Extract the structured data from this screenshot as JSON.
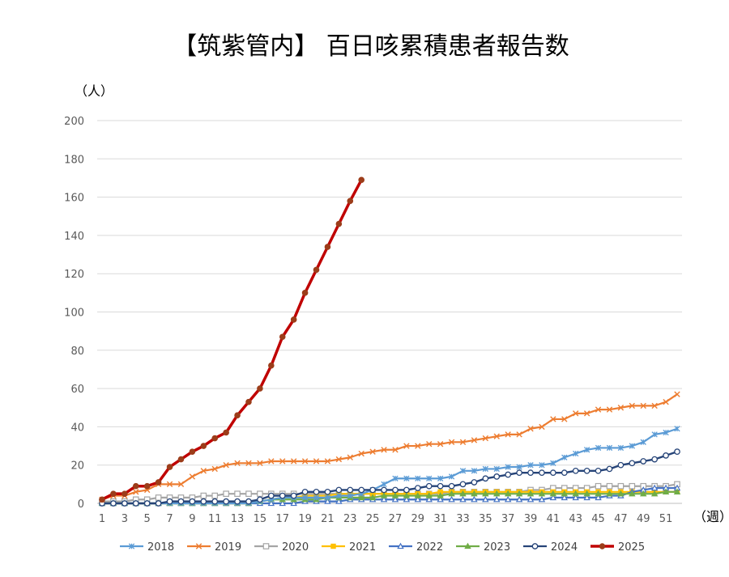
{
  "chart_data": {
    "type": "line",
    "title": "【筑紫管内】 百日咳累積患者報告数",
    "ylabel": "（人）",
    "xlabel": "（週）",
    "ylim": [
      0,
      200
    ],
    "yticks": [
      0,
      20,
      40,
      60,
      80,
      100,
      120,
      140,
      160,
      180,
      200
    ],
    "xlim": [
      1,
      52
    ],
    "xticks": [
      1,
      3,
      5,
      7,
      9,
      11,
      13,
      15,
      17,
      19,
      21,
      23,
      25,
      27,
      29,
      31,
      33,
      35,
      37,
      39,
      41,
      43,
      45,
      47,
      49,
      51
    ],
    "grid": "horizontal",
    "legend": "bottom",
    "series": [
      {
        "name": "2018",
        "color": "#5b9bd5",
        "marker": "star",
        "values": [
          0,
          0,
          0,
          0,
          0,
          0,
          0,
          0,
          0,
          0,
          0,
          0,
          0,
          0,
          1,
          2,
          3,
          3,
          3,
          3,
          3,
          4,
          4,
          5,
          7,
          10,
          13,
          13,
          13,
          13,
          13,
          14,
          17,
          17,
          18,
          18,
          19,
          19,
          20,
          20,
          21,
          24,
          26,
          28,
          29,
          29,
          29,
          30,
          32,
          36,
          37,
          39
        ]
      },
      {
        "name": "2019",
        "color": "#ed7d31",
        "marker": "x",
        "values": [
          2,
          4,
          4,
          6,
          7,
          10,
          10,
          10,
          14,
          17,
          18,
          20,
          21,
          21,
          21,
          22,
          22,
          22,
          22,
          22,
          22,
          23,
          24,
          26,
          27,
          28,
          28,
          30,
          30,
          31,
          31,
          32,
          32,
          33,
          34,
          35,
          36,
          36,
          39,
          40,
          44,
          44,
          47,
          47,
          49,
          49,
          50,
          51,
          51,
          51,
          53,
          57
        ]
      },
      {
        "name": "2020",
        "color": "#a5a5a5",
        "marker": "square-open",
        "values": [
          1,
          1,
          1,
          2,
          2,
          3,
          3,
          3,
          3,
          4,
          4,
          5,
          5,
          5,
          5,
          5,
          5,
          5,
          5,
          5,
          5,
          5,
          5,
          5,
          5,
          5,
          5,
          5,
          5,
          5,
          5,
          6,
          6,
          6,
          6,
          6,
          6,
          6,
          7,
          7,
          8,
          8,
          8,
          8,
          9,
          9,
          9,
          9,
          9,
          9,
          9,
          10
        ]
      },
      {
        "name": "2021",
        "color": "#ffc000",
        "marker": "square",
        "values": [
          0,
          0,
          0,
          0,
          0,
          0,
          0,
          0,
          0,
          0,
          0,
          0,
          0,
          0,
          1,
          2,
          3,
          3,
          4,
          4,
          4,
          5,
          5,
          5,
          5,
          5,
          5,
          5,
          5,
          5,
          6,
          6,
          6,
          6,
          6,
          6,
          6,
          6,
          6,
          6,
          6,
          6,
          6,
          6,
          6,
          6,
          6,
          6,
          6,
          6,
          6,
          6
        ]
      },
      {
        "name": "2022",
        "color": "#4472c4",
        "marker": "triangle-open",
        "values": [
          0,
          0,
          0,
          0,
          0,
          0,
          0,
          0,
          0,
          0,
          0,
          0,
          0,
          0,
          0,
          0,
          0,
          0,
          1,
          1,
          1,
          1,
          2,
          2,
          2,
          2,
          2,
          2,
          2,
          2,
          2,
          2,
          2,
          2,
          2,
          2,
          2,
          2,
          2,
          2,
          3,
          3,
          3,
          3,
          3,
          4,
          4,
          6,
          7,
          8,
          8,
          8
        ]
      },
      {
        "name": "2023",
        "color": "#70ad47",
        "marker": "triangle",
        "values": [
          0,
          0,
          0,
          0,
          0,
          0,
          0,
          0,
          0,
          0,
          0,
          0,
          0,
          0,
          1,
          2,
          2,
          2,
          2,
          2,
          3,
          3,
          3,
          3,
          3,
          4,
          4,
          4,
          4,
          4,
          4,
          5,
          5,
          5,
          5,
          5,
          5,
          5,
          5,
          5,
          5,
          5,
          5,
          5,
          5,
          5,
          5,
          5,
          5,
          5,
          6,
          6
        ]
      },
      {
        "name": "2024",
        "color": "#264478",
        "marker": "circle-open",
        "values": [
          0,
          0,
          0,
          0,
          0,
          0,
          1,
          1,
          1,
          1,
          1,
          1,
          1,
          1,
          2,
          4,
          4,
          4,
          6,
          6,
          6,
          7,
          7,
          7,
          7,
          7,
          7,
          7,
          8,
          9,
          9,
          9,
          10,
          11,
          13,
          14,
          15,
          16,
          16,
          16,
          16,
          16,
          17,
          17,
          17,
          18,
          20,
          21,
          22,
          23,
          25,
          27
        ]
      },
      {
        "name": "2025",
        "color": "#c00000",
        "marker": "circle",
        "values": [
          2,
          5,
          5,
          9,
          9,
          11,
          19,
          23,
          27,
          30,
          34,
          37,
          46,
          53,
          60,
          72,
          87,
          96,
          110,
          122,
          134,
          146,
          158,
          169
        ]
      }
    ]
  }
}
